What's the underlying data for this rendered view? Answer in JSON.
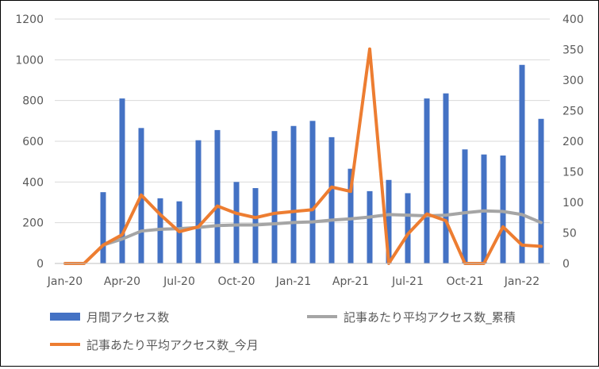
{
  "chart_data": {
    "type": "bar+line",
    "title": "",
    "x_ticks": [
      "Jan-20",
      "Apr-20",
      "Jul-20",
      "Oct-20",
      "Jan-21",
      "Apr-21",
      "Jul-21",
      "Oct-21",
      "Jan-22"
    ],
    "months": [
      "2020-01",
      "2020-02",
      "2020-03",
      "2020-04",
      "2020-05",
      "2020-06",
      "2020-07",
      "2020-08",
      "2020-09",
      "2020-10",
      "2020-11",
      "2020-12",
      "2021-01",
      "2021-02",
      "2021-03",
      "2021-04",
      "2021-05",
      "2021-06",
      "2021-07",
      "2021-08",
      "2021-09",
      "2021-10",
      "2021-11",
      "2021-12",
      "2022-01",
      "2022-02"
    ],
    "y_left": {
      "min": 0,
      "max": 1200,
      "ticks": [
        0,
        200,
        400,
        600,
        800,
        1000,
        1200
      ]
    },
    "y_right": {
      "min": 0,
      "max": 400,
      "ticks": [
        0,
        50,
        100,
        150,
        200,
        250,
        300,
        350,
        400
      ]
    },
    "grid": true,
    "legend_position": "bottom",
    "series": [
      {
        "name": "月間アクセス数",
        "kind": "bar",
        "axis": "left",
        "color": "#4472C4",
        "values": [
          0,
          0,
          350,
          810,
          665,
          320,
          305,
          605,
          655,
          400,
          370,
          650,
          675,
          700,
          620,
          465,
          355,
          410,
          345,
          810,
          835,
          560,
          535,
          530,
          975,
          710
        ]
      },
      {
        "name": "記事あたり平均アクセス数_累積",
        "kind": "line",
        "axis": "right",
        "color": "#A5A5A5",
        "values": [
          null,
          null,
          30,
          40,
          53,
          56,
          57,
          59,
          62,
          63,
          63,
          65,
          67,
          68,
          71,
          73,
          76,
          80,
          79,
          78,
          79,
          83,
          86,
          85,
          80,
          67
        ]
      },
      {
        "name": "記事あたり平均アクセス数_今月",
        "kind": "line",
        "axis": "right",
        "color": "#ED7D31",
        "values": [
          0,
          0,
          30,
          47,
          112,
          80,
          52,
          60,
          94,
          82,
          75,
          82,
          85,
          88,
          125,
          118,
          351,
          0,
          48,
          81,
          70,
          0,
          0,
          60,
          30,
          28
        ]
      }
    ]
  }
}
